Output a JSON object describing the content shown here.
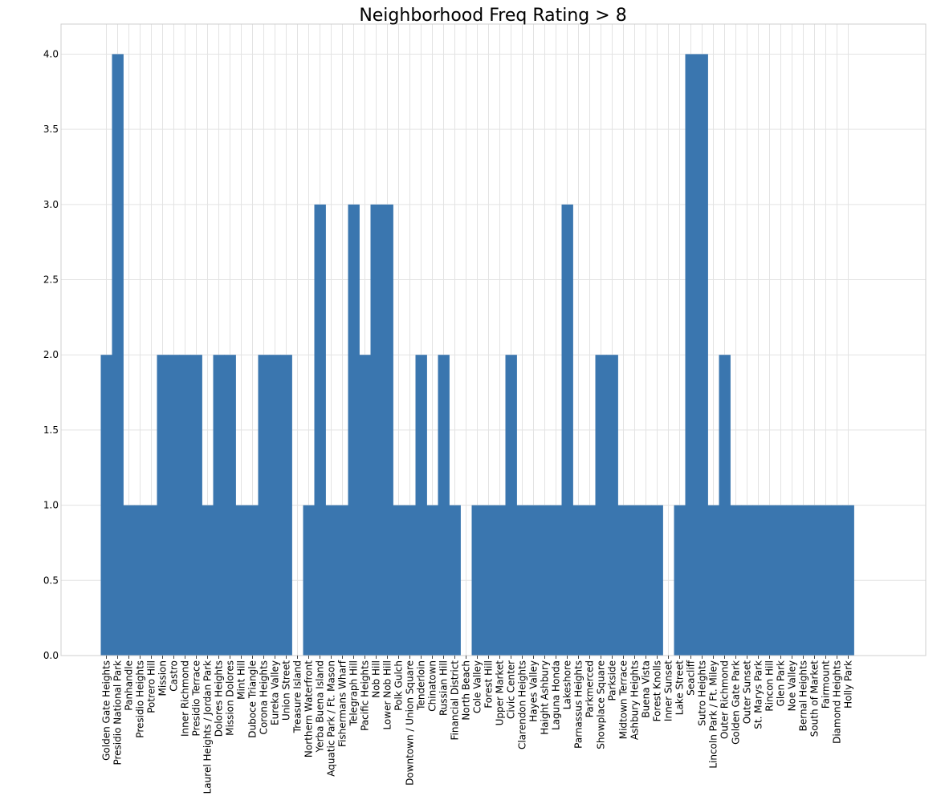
{
  "chart_data": {
    "type": "bar",
    "title": "Neighborhood Freq Rating > 8",
    "xlabel": "",
    "ylabel": "",
    "ylim": [
      0,
      4.2
    ],
    "yticks": [
      "0.0",
      "0.5",
      "1.0",
      "1.5",
      "2.0",
      "2.5",
      "3.0",
      "3.5",
      "4.0"
    ],
    "grid": true,
    "legend": "none",
    "bar_color": "#3a76af",
    "categories": [
      "Golden Gate Heights",
      "Presidio National Park",
      "Panhandle",
      "Presidio Heights",
      "Potrero Hill",
      "Mission",
      "Castro",
      "Inner Richmond",
      "Presidio Terrace",
      "Laurel Heights / Jordan Park",
      "Dolores Heights",
      "Mission Dolores",
      "Mint Hill",
      "Duboce Triangle",
      "Corona Heights",
      "Eureka Valley",
      "Union Street",
      "Treasure Island",
      "Northern Waterfront",
      "Yerba Buena Island",
      "Aquatic Park / Ft. Mason",
      "Fishermans Wharf",
      "Telegraph Hill",
      "Pacific Heights",
      "Nob Hill",
      "Lower Nob Hill",
      "Polk Gulch",
      "Downtown / Union Square",
      "Tenderloin",
      "Chinatown",
      "Russian Hill",
      "Financial District",
      "North Beach",
      "Cole Valley",
      "Forest Hill",
      "Upper Market",
      "Civic Center",
      "Clarendon Heights",
      "Hayes Valley",
      "Haight Ashbury",
      "Laguna Honda",
      "Lakeshore",
      "Parnassus Heights",
      "Parkmerced",
      "Showplace Square",
      "Parkside",
      "Midtown Terrace",
      "Ashbury Heights",
      "Buena Vista",
      "Forest Knolls",
      "Inner Sunset",
      "Lake Street",
      "Seacliff",
      "Sutro Heights",
      "Lincoln Park / Ft. Miley",
      "Outer Richmond",
      "Golden Gate Park",
      "Outer Sunset",
      "St. Marys Park",
      "Rincon Hill",
      "Glen Park",
      "Noe Valley",
      "Bernal Heights",
      "South of Market",
      "Fairmount",
      "Diamond Heights",
      "Holly Park"
    ],
    "values": [
      2,
      4,
      1,
      1,
      1,
      2,
      2,
      2,
      2,
      1,
      2,
      2,
      1,
      1,
      2,
      2,
      2,
      0,
      1,
      3,
      1,
      1,
      3,
      2,
      3,
      3,
      1,
      1,
      2,
      1,
      2,
      1,
      0,
      1,
      1,
      1,
      2,
      1,
      1,
      1,
      1,
      3,
      1,
      1,
      2,
      2,
      1,
      1,
      1,
      1,
      0,
      1,
      4,
      4,
      1,
      2,
      1,
      1,
      1,
      1,
      1,
      1,
      1,
      1,
      1,
      1,
      1
    ]
  }
}
